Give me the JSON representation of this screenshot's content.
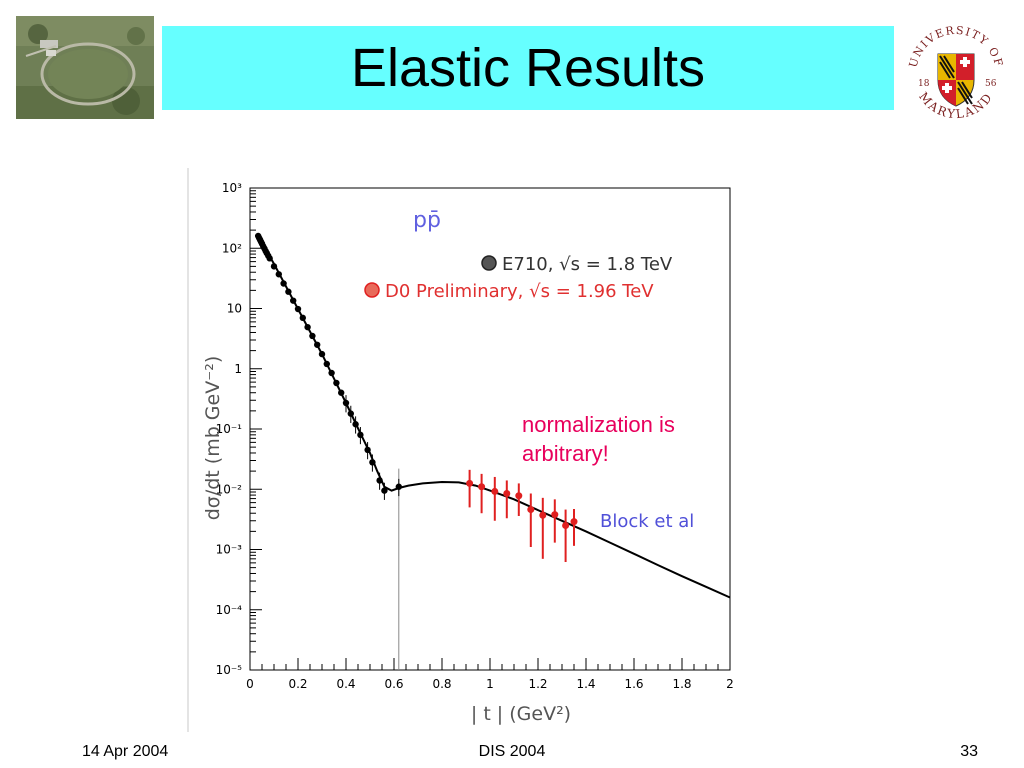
{
  "slide": {
    "title": "Elastic Results",
    "annotation_line1": "normalization is",
    "annotation_line2": "arbitrary!",
    "footer_left": "14 Apr 2004",
    "footer_center": "DIS 2004",
    "footer_right": "33",
    "title_bar_color": "#66ffff"
  },
  "seal": {
    "text_top": "UNIVERSITY OF",
    "text_bottom": "MARYLAND",
    "year_left": "18",
    "year_right": "56"
  },
  "chart_data": {
    "type": "scatter",
    "y_scale": "log",
    "xlabel": "| t | (GeV²)",
    "ylabel": "dσ/dt (mb GeV⁻²)",
    "xlim": [
      0,
      2
    ],
    "ylim_exponents": [
      -5,
      3
    ],
    "x_ticks": [
      "0",
      "0.2",
      "0.4",
      "0.6",
      "0.8",
      "1",
      "1.2",
      "1.4",
      "1.6",
      "1.8",
      "2"
    ],
    "y_ticks": [
      {
        "exp": 3,
        "label": "10³"
      },
      {
        "exp": 2,
        "label": "10²"
      },
      {
        "exp": 1,
        "label": "10"
      },
      {
        "exp": 0,
        "label": "1"
      },
      {
        "exp": -1,
        "label": "10⁻¹"
      },
      {
        "exp": -2,
        "label": "10⁻²"
      },
      {
        "exp": -3,
        "label": "10⁻³"
      },
      {
        "exp": -4,
        "label": "10⁻⁴"
      },
      {
        "exp": -5,
        "label": "10⁻⁵"
      }
    ],
    "process_label": "pp̄",
    "legend": [
      {
        "label": "E710, √s = 1.8 TeV",
        "color": "#000000"
      },
      {
        "label": "D0 Preliminary, √s = 1.96 TeV",
        "color": "#e02020"
      }
    ],
    "curve_label": "Block et al",
    "series": [
      {
        "name": "E710, √s = 1.8 TeV",
        "color": "#000000",
        "points": [
          {
            "x": 0.034,
            "y": 160
          },
          {
            "x": 0.038,
            "y": 148
          },
          {
            "x": 0.042,
            "y": 138
          },
          {
            "x": 0.046,
            "y": 128
          },
          {
            "x": 0.05,
            "y": 119
          },
          {
            "x": 0.055,
            "y": 108
          },
          {
            "x": 0.06,
            "y": 99
          },
          {
            "x": 0.065,
            "y": 90
          },
          {
            "x": 0.07,
            "y": 83
          },
          {
            "x": 0.076,
            "y": 75
          },
          {
            "x": 0.082,
            "y": 68
          },
          {
            "x": 0.1,
            "y": 50
          },
          {
            "x": 0.12,
            "y": 37
          },
          {
            "x": 0.14,
            "y": 26
          },
          {
            "x": 0.16,
            "y": 19
          },
          {
            "x": 0.18,
            "y": 13.5
          },
          {
            "x": 0.2,
            "y": 9.8
          },
          {
            "x": 0.22,
            "y": 7
          },
          {
            "x": 0.24,
            "y": 4.9
          },
          {
            "x": 0.26,
            "y": 3.5
          },
          {
            "x": 0.28,
            "y": 2.5
          },
          {
            "x": 0.3,
            "y": 1.75
          },
          {
            "x": 0.32,
            "y": 1.2
          },
          {
            "x": 0.34,
            "y": 0.85
          },
          {
            "x": 0.36,
            "y": 0.58
          },
          {
            "x": 0.38,
            "y": 0.4
          },
          {
            "x": 0.4,
            "y": 0.27
          },
          {
            "x": 0.42,
            "y": 0.18
          },
          {
            "x": 0.44,
            "y": 0.12
          },
          {
            "x": 0.46,
            "y": 0.08
          },
          {
            "x": 0.49,
            "y": 0.045
          },
          {
            "x": 0.51,
            "y": 0.028
          },
          {
            "x": 0.54,
            "y": 0.014
          },
          {
            "x": 0.56,
            "y": 0.0095
          },
          {
            "x": 0.62,
            "y": 0.011
          }
        ]
      },
      {
        "name": "D0 Preliminary, √s = 1.96 TeV",
        "color": "#e02020",
        "points": [
          {
            "x": 0.915,
            "y": 0.0125,
            "err_up": 0.021,
            "err_down": 0.005
          },
          {
            "x": 0.965,
            "y": 0.011,
            "err_up": 0.018,
            "err_down": 0.004
          },
          {
            "x": 1.02,
            "y": 0.0092,
            "err_up": 0.016,
            "err_down": 0.003
          },
          {
            "x": 1.07,
            "y": 0.0085,
            "err_up": 0.014,
            "err_down": 0.0033
          },
          {
            "x": 1.12,
            "y": 0.0078,
            "err_up": 0.0125,
            "err_down": 0.0036
          },
          {
            "x": 1.17,
            "y": 0.0046,
            "err_up": 0.0085,
            "err_down": 0.0011
          },
          {
            "x": 1.22,
            "y": 0.0037,
            "err_up": 0.0072,
            "err_down": 0.0007
          },
          {
            "x": 1.27,
            "y": 0.0038,
            "err_up": 0.0068,
            "err_down": 0.0013
          },
          {
            "x": 1.315,
            "y": 0.0025,
            "err_up": 0.0046,
            "err_down": 0.00062
          },
          {
            "x": 1.35,
            "y": 0.0029,
            "err_up": 0.0047,
            "err_down": 0.00115
          }
        ]
      },
      {
        "name": "Block et al",
        "color": "#000000",
        "style": "line",
        "points": [
          {
            "x": 0.03,
            "y": 170
          },
          {
            "x": 0.1,
            "y": 55
          },
          {
            "x": 0.2,
            "y": 9.8
          },
          {
            "x": 0.3,
            "y": 1.75
          },
          {
            "x": 0.4,
            "y": 0.27
          },
          {
            "x": 0.46,
            "y": 0.085
          },
          {
            "x": 0.5,
            "y": 0.04
          },
          {
            "x": 0.53,
            "y": 0.02
          },
          {
            "x": 0.56,
            "y": 0.011
          },
          {
            "x": 0.59,
            "y": 0.0095
          },
          {
            "x": 0.62,
            "y": 0.0105
          },
          {
            "x": 0.66,
            "y": 0.0115
          },
          {
            "x": 0.72,
            "y": 0.0125
          },
          {
            "x": 0.8,
            "y": 0.0132
          },
          {
            "x": 0.87,
            "y": 0.013
          },
          {
            "x": 0.94,
            "y": 0.0115
          },
          {
            "x": 1.0,
            "y": 0.0095
          },
          {
            "x": 1.1,
            "y": 0.0068
          },
          {
            "x": 1.2,
            "y": 0.0045
          },
          {
            "x": 1.3,
            "y": 0.003
          },
          {
            "x": 1.4,
            "y": 0.002
          },
          {
            "x": 1.5,
            "y": 0.0013
          },
          {
            "x": 1.6,
            "y": 0.00085
          },
          {
            "x": 1.7,
            "y": 0.00055
          },
          {
            "x": 1.8,
            "y": 0.00036
          },
          {
            "x": 1.9,
            "y": 0.00024
          },
          {
            "x": 2.0,
            "y": 0.00016
          }
        ]
      }
    ]
  }
}
